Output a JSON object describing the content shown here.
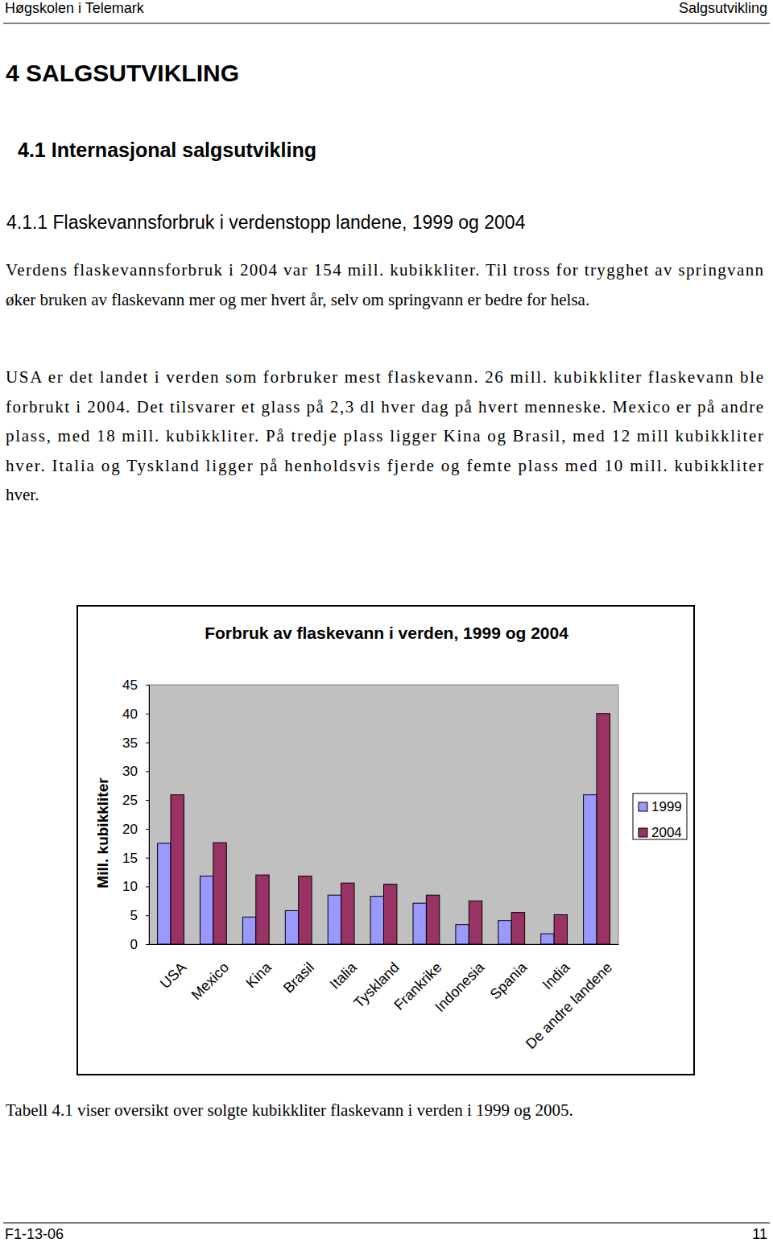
{
  "header": {
    "left": "Høgskolen i Telemark",
    "right": "Salgsutvikling"
  },
  "headings": [
    "4 SALGSUTVIKLING",
    "4.1 Internasjonal salgsutvikling",
    "4.1.1 Flaskevannsforbruk i verdenstopp landene, 1999 og 2004"
  ],
  "paragraphs": [
    [
      "Verdens flaskevannsforbruk i 2004 var 154 mill. kubikkliter. Til tross for trygghet av springvann",
      "øker bruken av flaskevann mer og mer hvert år, selv om springvann er bedre for helsa."
    ],
    [
      "USA er det landet i verden som forbruker mest flaskevann. 26 mill. kubikkliter flaskevann ble",
      "forbrukt i 2004. Det tilsvarer et glass på 2,3 dl hver dag på hvert menneske. Mexico er på andre",
      "plass, med 18 mill. kubikkliter. På tredje plass ligger Kina og Brasil, med 12 mill kubikkliter",
      "hver. Italia og Tyskland ligger på henholdsvis fjerde og femte plass med 10 mill. kubikkliter",
      "hver."
    ]
  ],
  "chart_data": {
    "type": "bar",
    "title": "Forbruk av flaskevann i verden, 1999 og 2004",
    "y_label": "Mill. kubikkliter",
    "categories": [
      "USA",
      "Mexico",
      "Kina",
      "Brasil",
      "Italia",
      "Tyskland",
      "Frankrike",
      "Indonesia",
      "Spania",
      "India",
      "De andre landene"
    ],
    "series": [
      {
        "name": "1999",
        "color": "#9999ff",
        "values": [
          17.5,
          11.8,
          4.7,
          5.8,
          8.5,
          8.3,
          7.1,
          3.4,
          4.1,
          1.8,
          25.9
        ]
      },
      {
        "name": "2004",
        "color": "#993366",
        "values": [
          25.9,
          17.6,
          12,
          11.8,
          10.6,
          10.4,
          8.5,
          7.5,
          5.5,
          5.1,
          40
        ]
      }
    ],
    "ylim": [
      0,
      45
    ],
    "yticks": [
      0,
      5,
      10,
      15,
      20,
      25,
      30,
      35,
      40,
      45
    ],
    "grid": false,
    "legend": "right"
  },
  "caption": "Tabell 4.1 viser oversikt over solgte kubikkliter flaskevann i verden i 1999 og 2005.",
  "footer": {
    "left": "F1-13-06",
    "right": "11"
  }
}
